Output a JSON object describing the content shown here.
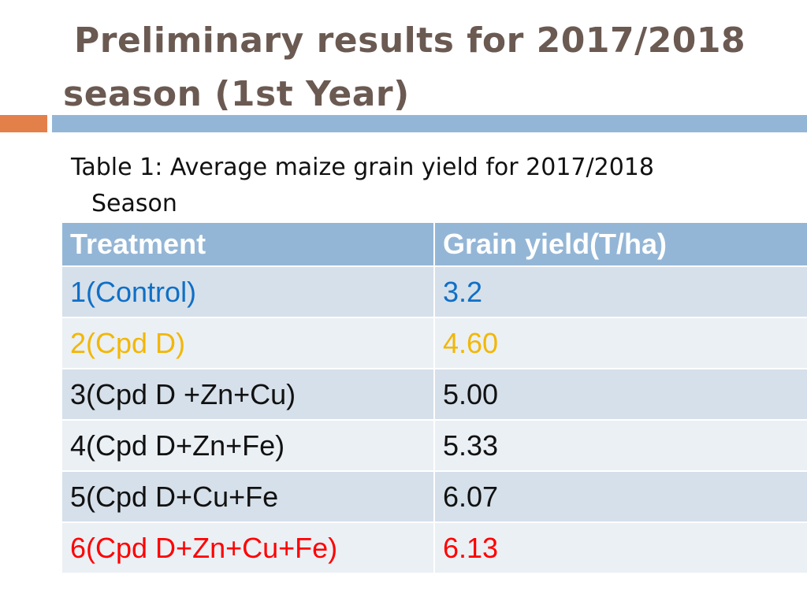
{
  "slide": {
    "title_line1": "Preliminary results for 2017/2018",
    "title_line2": "season (1st Year)",
    "caption_line1": "Table 1: Average maize grain yield for 2017/2018",
    "caption_line2": "Season"
  },
  "colors": {
    "title": "#6b5a52",
    "accent_orange": "#e3804a",
    "accent_blue": "#94b6d6",
    "row_dark": "#d6e0ea",
    "row_light": "#ebf0f5",
    "control_text": "#0f6fc6",
    "cpd_d_text": "#f2b705",
    "best_text": "#ff0000",
    "default_text": "#111111"
  },
  "table": {
    "headers": [
      "Treatment",
      "Grain yield(T/ha)"
    ],
    "rows": [
      {
        "treatment": "1(Control)",
        "yield": "3.2",
        "color": "#0f6fc6"
      },
      {
        "treatment": "2(Cpd D)",
        "yield": "4.60",
        "color": "#f2b705"
      },
      {
        "treatment": "3(Cpd D +Zn+Cu)",
        "yield": "5.00",
        "color": "#111111"
      },
      {
        "treatment": "4(Cpd D+Zn+Fe)",
        "yield": "5.33",
        "color": "#111111"
      },
      {
        "treatment": "5(Cpd D+Cu+Fe",
        "yield": "6.07",
        "color": "#111111"
      },
      {
        "treatment": "6(Cpd D+Zn+Cu+Fe)",
        "yield": "6.13",
        "color": "#ff0000"
      }
    ]
  }
}
